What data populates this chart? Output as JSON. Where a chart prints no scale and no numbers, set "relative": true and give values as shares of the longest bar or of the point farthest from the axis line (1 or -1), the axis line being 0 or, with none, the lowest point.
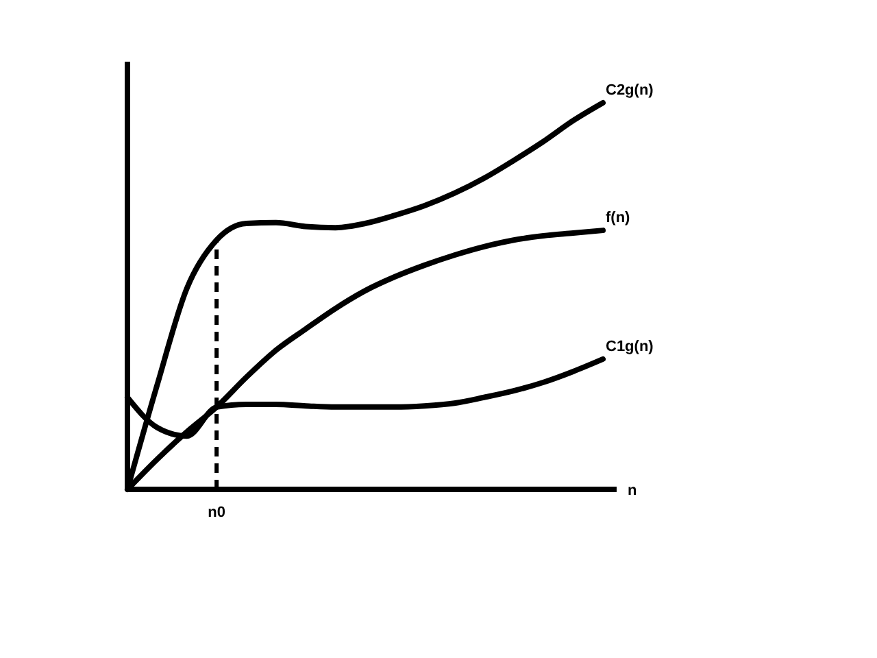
{
  "chart_data": {
    "type": "line",
    "relative": true,
    "xlabel": "n",
    "categories": [
      null,
      null,
      null,
      null,
      null,
      null,
      null,
      null,
      null,
      null,
      null,
      null,
      null,
      null,
      null,
      null,
      null
    ],
    "annotations": [
      "n0"
    ],
    "series": [
      {
        "name": "C2g(n)",
        "color": "#000000",
        "values": [
          0,
          0.27,
          0.52,
          0.645,
          0.688,
          0.69,
          0.68,
          0.677,
          0.688,
          0.709,
          0.734,
          0.766,
          0.805,
          0.851,
          0.9,
          0.954,
          1
        ]
      },
      {
        "name": "f(n)",
        "color": "#000000",
        "values": [
          0,
          0.078,
          0.149,
          0.213,
          0.29,
          0.36,
          0.415,
          0.468,
          0.514,
          0.55,
          0.58,
          0.606,
          0.628,
          0.645,
          0.656,
          0.663,
          0.67
        ]
      },
      {
        "name": "C1g(n)",
        "color": "#000000",
        "values": [
          0.238,
          0.16,
          0.138,
          0.213,
          0.22,
          0.22,
          0.216,
          0.213,
          0.213,
          0.213,
          0.216,
          0.223,
          0.238,
          0.255,
          0.277,
          0.305,
          0.337
        ]
      }
    ]
  }
}
